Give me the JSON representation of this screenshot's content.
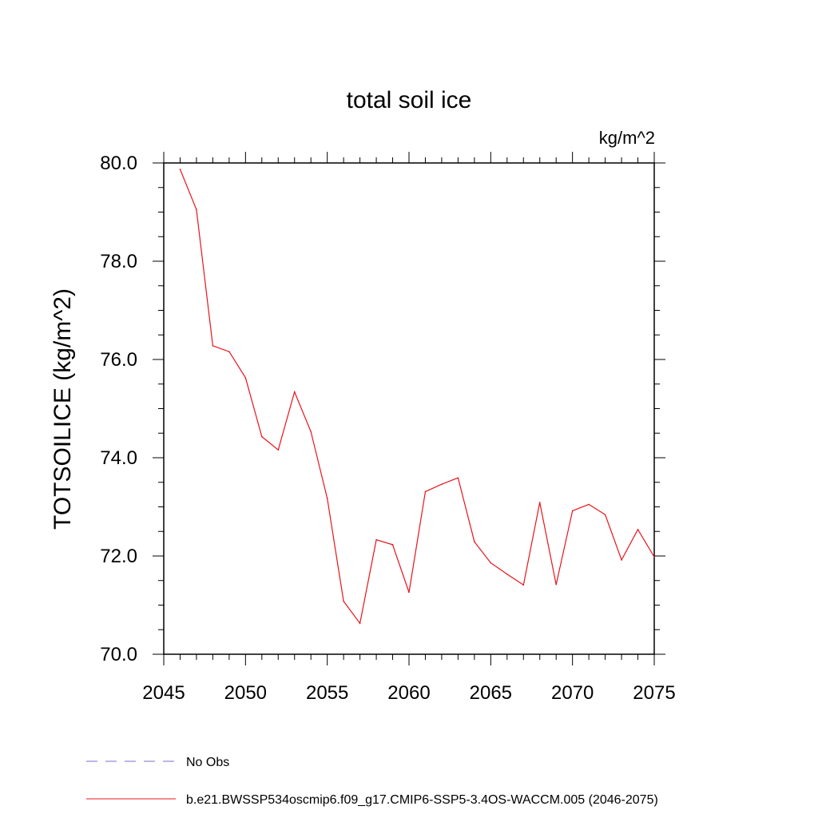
{
  "chart_data": {
    "type": "line",
    "title": "total soil ice",
    "units": "kg/m^2",
    "ylabel": "TOTSOILICE  (kg/m^2)",
    "xlabel": "",
    "xlim": [
      2045,
      2075
    ],
    "ylim": [
      70.0,
      80.0
    ],
    "x_ticks": [
      2045,
      2050,
      2055,
      2060,
      2065,
      2070,
      2075
    ],
    "x_tick_labels": [
      "2045",
      "2050",
      "2055",
      "2060",
      "2065",
      "2070",
      "2075"
    ],
    "y_ticks": [
      70.0,
      72.0,
      74.0,
      76.0,
      78.0,
      80.0
    ],
    "y_tick_labels": [
      "70.0",
      "72.0",
      "74.0",
      "76.0",
      "78.0",
      "80.0"
    ],
    "grid": false,
    "legend_placement": "bottom-left",
    "legend": [
      {
        "label": "No Obs",
        "color": "#7a6fd0",
        "style": "dashed"
      },
      {
        "label": "b.e21.BWSSP534oscmip6.f09_g17.CMIP6-SSP5-3.4OS-WACCM.005 (2046-2075)",
        "color": "#e8141b",
        "style": "solid"
      }
    ],
    "series": [
      {
        "name": "b.e21.BWSSP534oscmip6.f09_g17.CMIP6-SSP5-3.4OS-WACCM.005 (2046-2075)",
        "color": "#e8141b",
        "x": [
          2046,
          2047,
          2048,
          2049,
          2050,
          2051,
          2052,
          2053,
          2054,
          2055,
          2056,
          2057,
          2058,
          2059,
          2060,
          2061,
          2062,
          2063,
          2064,
          2065,
          2066,
          2067,
          2068,
          2069,
          2070,
          2071,
          2072,
          2073,
          2074,
          2075
        ],
        "values": [
          79.87,
          79.05,
          76.28,
          76.16,
          75.63,
          74.43,
          74.16,
          75.34,
          74.53,
          73.17,
          71.08,
          70.63,
          72.33,
          72.23,
          71.26,
          73.31,
          73.46,
          73.59,
          72.29,
          71.86,
          71.63,
          71.41,
          73.09,
          71.42,
          72.92,
          73.05,
          72.84,
          71.92,
          72.54,
          71.98
        ]
      }
    ]
  }
}
